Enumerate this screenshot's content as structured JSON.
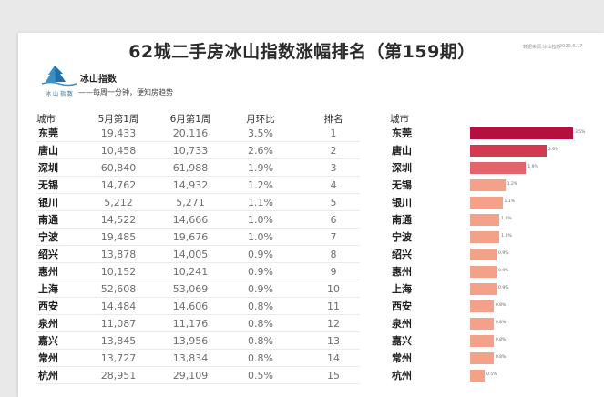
{
  "title": "62城二手房冰山指数涨幅排名（第159期）",
  "meta": {
    "left": "数据来源:冰山指数",
    "right": "2020.6.17"
  },
  "brand": {
    "name": "冰山指数",
    "logo_text": "冰 山 指 数",
    "slogan": "——每周一分钟，便知房趋势"
  },
  "headers": {
    "city": "城市",
    "week1": "5月第1周",
    "week2": "6月第1周",
    "mom": "月环比",
    "rank": "排名",
    "city2": "城市"
  },
  "colors": {
    "darkest": "#b3103f",
    "dark": "#d23a4f",
    "mid": "#e4646a",
    "light": "#f4a189"
  },
  "chart_data": {
    "type": "table",
    "title": "62城二手房冰山指数涨幅排名（第159期）",
    "columns": [
      "城市",
      "5月第1周",
      "6月第1周",
      "月环比",
      "排名"
    ],
    "rows": [
      {
        "city": "东莞",
        "w1": "19,433",
        "w2": "20,116",
        "mom": "3.5%",
        "rank": "1",
        "pct": 3.5
      },
      {
        "city": "唐山",
        "w1": "10,458",
        "w2": "10,733",
        "mom": "2.6%",
        "rank": "2",
        "pct": 2.6
      },
      {
        "city": "深圳",
        "w1": "60,840",
        "w2": "61,988",
        "mom": "1.9%",
        "rank": "3",
        "pct": 1.9
      },
      {
        "city": "无锡",
        "w1": "14,762",
        "w2": "14,932",
        "mom": "1.2%",
        "rank": "4",
        "pct": 1.2
      },
      {
        "city": "银川",
        "w1": "5,212",
        "w2": "5,271",
        "mom": "1.1%",
        "rank": "5",
        "pct": 1.1
      },
      {
        "city": "南通",
        "w1": "14,522",
        "w2": "14,666",
        "mom": "1.0%",
        "rank": "6",
        "pct": 1.0
      },
      {
        "city": "宁波",
        "w1": "19,485",
        "w2": "19,676",
        "mom": "1.0%",
        "rank": "7",
        "pct": 1.0
      },
      {
        "city": "绍兴",
        "w1": "13,878",
        "w2": "14,005",
        "mom": "0.9%",
        "rank": "8",
        "pct": 0.9
      },
      {
        "city": "惠州",
        "w1": "10,152",
        "w2": "10,241",
        "mom": "0.9%",
        "rank": "9",
        "pct": 0.9
      },
      {
        "city": "上海",
        "w1": "52,608",
        "w2": "53,069",
        "mom": "0.9%",
        "rank": "10",
        "pct": 0.9
      },
      {
        "city": "西安",
        "w1": "14,484",
        "w2": "14,606",
        "mom": "0.8%",
        "rank": "11",
        "pct": 0.8
      },
      {
        "city": "泉州",
        "w1": "11,087",
        "w2": "11,176",
        "mom": "0.8%",
        "rank": "12",
        "pct": 0.8
      },
      {
        "city": "嘉兴",
        "w1": "13,845",
        "w2": "13,956",
        "mom": "0.8%",
        "rank": "13",
        "pct": 0.8
      },
      {
        "city": "常州",
        "w1": "13,727",
        "w2": "13,834",
        "mom": "0.8%",
        "rank": "14",
        "pct": 0.8
      },
      {
        "city": "杭州",
        "w1": "28,951",
        "w2": "29,109",
        "mom": "0.5%",
        "rank": "15",
        "pct": 0.5
      }
    ],
    "bar_series": {
      "name": "月环比",
      "categories": [
        "东莞",
        "唐山",
        "深圳",
        "无锡",
        "银川",
        "南通",
        "宁波",
        "绍兴",
        "惠州",
        "上海",
        "西安",
        "泉州",
        "嘉兴",
        "常州",
        "杭州"
      ],
      "values": [
        3.5,
        2.6,
        1.9,
        1.2,
        1.1,
        1.0,
        1.0,
        0.9,
        0.9,
        0.9,
        0.8,
        0.8,
        0.8,
        0.8,
        0.5
      ]
    }
  }
}
